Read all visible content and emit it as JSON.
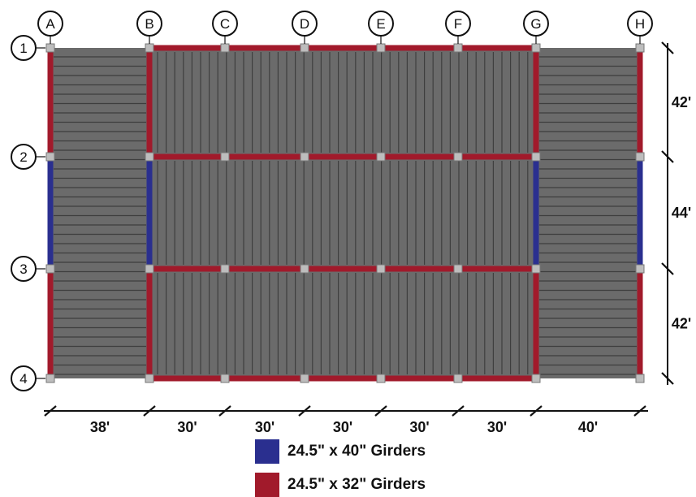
{
  "gridlines": {
    "columns": [
      "A",
      "B",
      "C",
      "D",
      "E",
      "F",
      "G",
      "H"
    ],
    "rows": [
      "1",
      "2",
      "3",
      "4"
    ]
  },
  "dimensions": {
    "horizontal": [
      "38'",
      "30'",
      "30'",
      "30'",
      "30'",
      "30'",
      "40'"
    ],
    "vertical": [
      "42'",
      "44'",
      "42'"
    ]
  },
  "legend": [
    {
      "label": "24.5\" x 40\" Girders",
      "color": "#2a2f8f"
    },
    {
      "label": "24.5\" x 32\" Girders",
      "color": "#a11a2b"
    }
  ],
  "colors": {
    "deck": "#6b6b6b",
    "deck_dark": "#555555",
    "beam": "#3e3e3e",
    "column": "#bdbdbd"
  }
}
